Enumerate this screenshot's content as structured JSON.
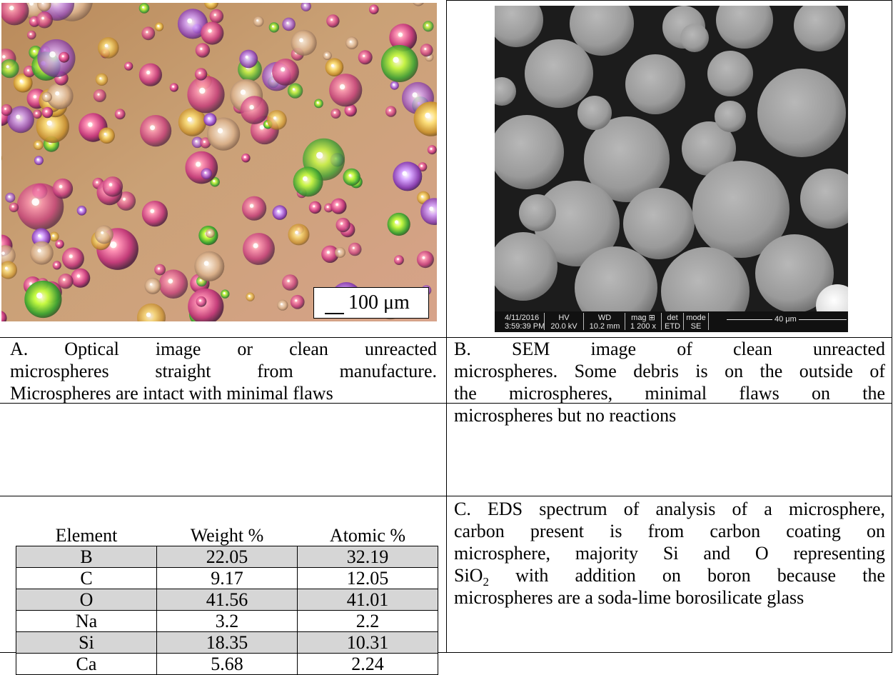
{
  "figure_a": {
    "scale_bar_label": "100 μm",
    "caption_lines": [
      "A. Optical image or clean unreacted",
      "microspheres straight from manufacture.",
      "Microspheres are intact with minimal flaws"
    ]
  },
  "figure_b": {
    "databar": {
      "date": "4/11/2016",
      "time": "3:59:39 PM",
      "hv_label": "HV",
      "hv_value": "20.0 kV",
      "wd_label": "WD",
      "wd_value": "10.2 mm",
      "mag_label": "mag ⊞",
      "mag_value": "1 200 x",
      "det_label": "det",
      "det_value": "ETD",
      "mode_label": "mode",
      "mode_value": "SE",
      "scale_label": "40 μm"
    },
    "caption_lines": [
      "B. SEM image of clean unreacted",
      "microspheres. Some debris is on the outside of",
      "the microspheres, minimal flaws on the",
      "microspheres but no reactions"
    ]
  },
  "figure_c": {
    "table": {
      "headers": [
        "Element",
        "Weight %",
        "Atomic %"
      ],
      "rows": [
        [
          "B",
          "22.05",
          "32.19"
        ],
        [
          "C",
          "9.17",
          "12.05"
        ],
        [
          "O",
          "41.56",
          "41.01"
        ],
        [
          "Na",
          "3.2",
          "2.2"
        ],
        [
          "Si",
          "18.35",
          "10.31"
        ],
        [
          "Ca",
          "5.68",
          "2.24"
        ]
      ]
    },
    "caption_lines": [
      "C. EDS spectrum of analysis of a microsphere,",
      "carbon present is from carbon coating on",
      "microsphere, majority Si and O representing"
    ],
    "caption_line4_prefix": "SiO",
    "caption_line4_subscript": "2",
    "caption_line4_suffix": " with addition on boron because the",
    "caption_line5": "microspheres are a soda-lime borosilicate glass"
  }
}
